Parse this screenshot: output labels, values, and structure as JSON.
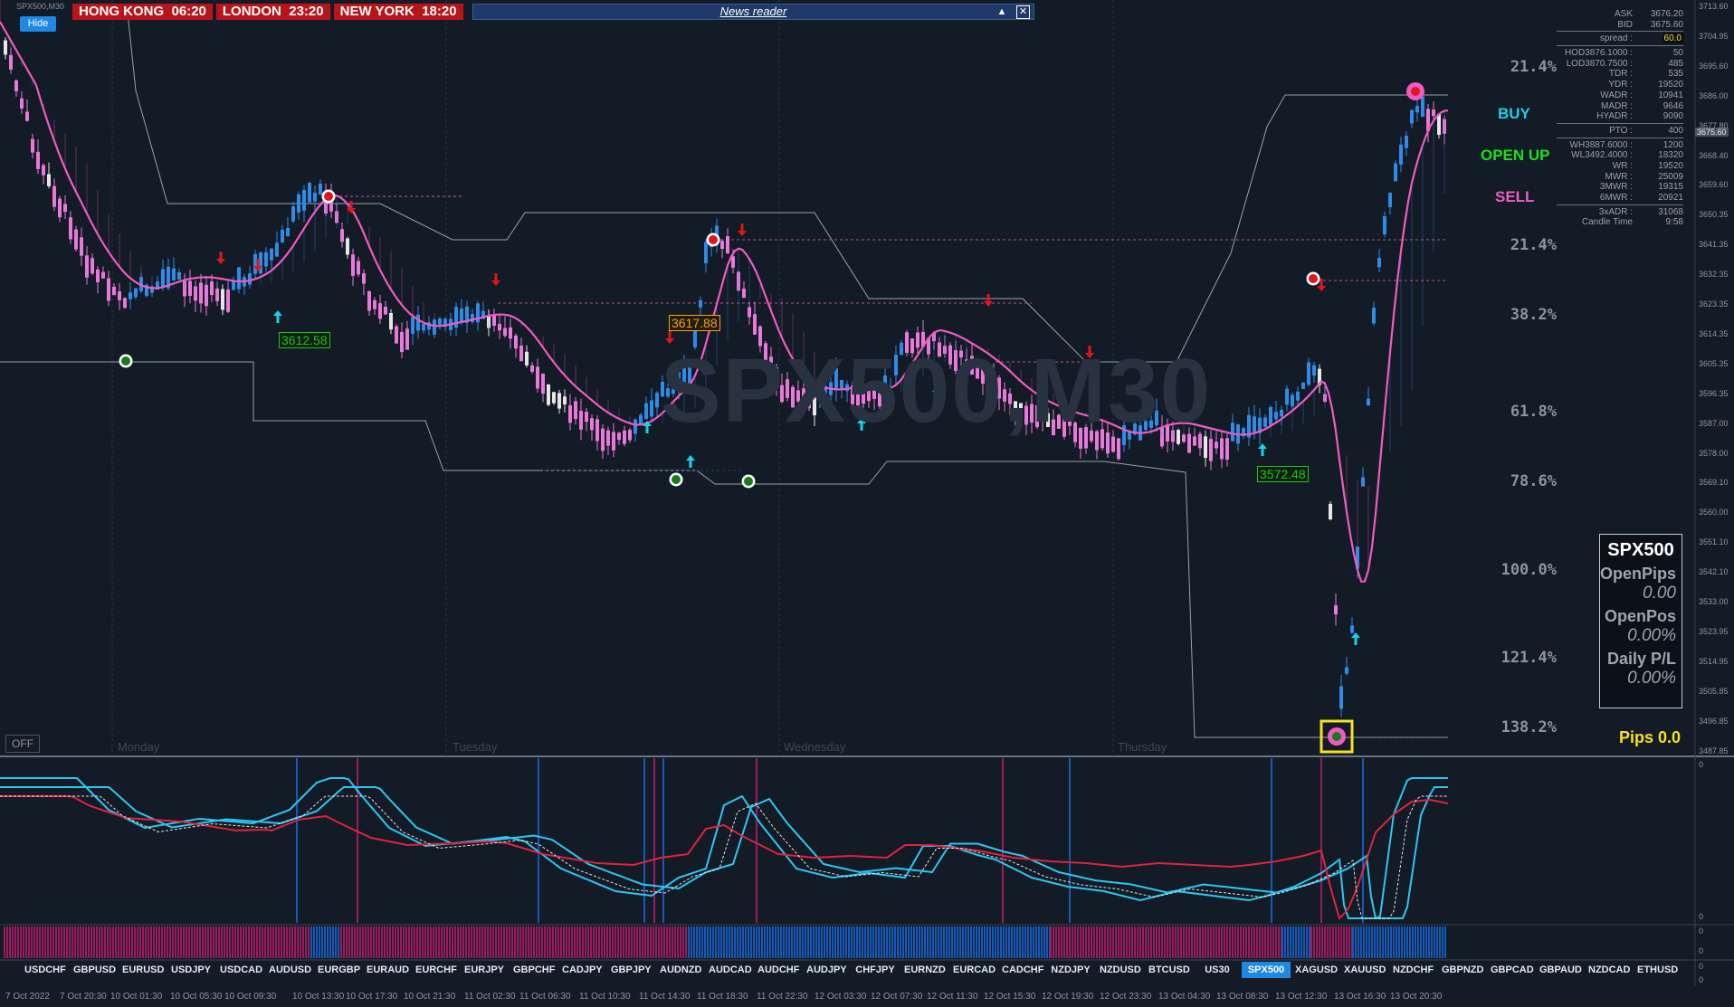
{
  "symbol_title": "SPX500,M30",
  "watermark": "SPX500,M30",
  "clocks": [
    {
      "label": "HONG KONG",
      "time": "06:20"
    },
    {
      "label": "LONDON",
      "time": "23:20"
    },
    {
      "label": "NEW YORK",
      "time": "18:20"
    }
  ],
  "news_reader": {
    "title": "News reader",
    "minimize": "▲",
    "close": "✕"
  },
  "hide_button": "Hide",
  "off_button": "OFF",
  "day_labels": [
    "Monday",
    "Tuesday",
    "Wednesday",
    "Thursday"
  ],
  "fib_levels": [
    "21.4%",
    "21.4%",
    "38.2%",
    "61.8%",
    "78.6%",
    "100.0%",
    "121.4%",
    "138.2%"
  ],
  "signals": {
    "buy": "BUY",
    "open_up": "OPEN UP",
    "sell": "SELL"
  },
  "signal_colors": {
    "buy": "#19d2ea",
    "open_up": "#18e01b",
    "sell": "#f25ac3"
  },
  "info_panel": {
    "ask": {
      "label": "ASK",
      "value": "3676.20"
    },
    "bid": {
      "label": "BID",
      "value": "3675.60"
    },
    "spread": {
      "label": "spread :",
      "value": "60.0"
    },
    "rows1": [
      {
        "label": "HOD3876.1000 :",
        "value": "50"
      },
      {
        "label": "LOD3870.7500 :",
        "value": "485"
      },
      {
        "label": "TDR :",
        "value": "535"
      },
      {
        "label": "YDR :",
        "value": "19520"
      },
      {
        "label": "WADR :",
        "value": "10941"
      },
      {
        "label": "MADR :",
        "value": "9646"
      },
      {
        "label": "HYADR :",
        "value": "9090"
      }
    ],
    "rows2": [
      {
        "label": "PTO :",
        "value": "400"
      }
    ],
    "rows3": [
      {
        "label": "WH3887.6000 :",
        "value": "1200"
      },
      {
        "label": "WL3492.4000 :",
        "value": "18320"
      },
      {
        "label": "WR :",
        "value": "19520"
      },
      {
        "label": "MWR :",
        "value": "25009"
      },
      {
        "label": "3MWR :",
        "value": "19315"
      },
      {
        "label": "6MWR :",
        "value": "20921"
      }
    ],
    "rows4": [
      {
        "label": "3xADR :",
        "value": "31068"
      },
      {
        "label": "Candle Time",
        "value": "9:58"
      }
    ]
  },
  "pnl_box": {
    "symbol": "SPX500",
    "open_pips_label": "OpenPips",
    "open_pips_value": "0.00",
    "open_pos_label": "OpenPos",
    "open_pos_value": "0.00%",
    "daily_label": "Daily P/L",
    "daily_value": "0.00%"
  },
  "pips_total": "Pips 0.0",
  "price_labels": {
    "low1": "3612.58",
    "high1": "3617.88",
    "low2": "3572.48"
  },
  "current_price": "3675.60",
  "price_axis": [
    "3713.60",
    "3704.95",
    "3695.60",
    "3686.00",
    "3677.80",
    "3668.40",
    "3659.60",
    "3650.35",
    "3641.35",
    "3632.35",
    "3623.35",
    "3614.35",
    "3605.35",
    "3596.35",
    "3587.00",
    "3578.00",
    "3569.10",
    "3560.00",
    "3551.10",
    "3542.10",
    "3533.00",
    "3523.95",
    "3514.95",
    "3505.85",
    "3496.85",
    "3487.85"
  ],
  "osc_axis": [
    "0",
    "0"
  ],
  "hist_axis": [
    "0",
    "0"
  ],
  "sym_axis": [
    "0",
    "0"
  ],
  "symbols": [
    "USDCHF",
    "GBPUSD",
    "EURUSD",
    "USDJPY",
    "USDCAD",
    "AUDUSD",
    "EURGBP",
    "EURAUD",
    "EURCHF",
    "EURJPY",
    "GBPCHF",
    "CADJPY",
    "GBPJPY",
    "AUDNZD",
    "AUDCAD",
    "AUDCHF",
    "AUDJPY",
    "CHFJPY",
    "EURNZD",
    "EURCAD",
    "CADCHF",
    "NZDJPY",
    "NZDUSD",
    "BTCUSD",
    "US30",
    "SPX500",
    "XAGUSD",
    "XAUUSD",
    "NZDCHF",
    "GBPNZD",
    "GBPCAD",
    "GBPAUD",
    "NZDCAD",
    "ETHUSD"
  ],
  "active_symbol": "SPX500",
  "time_axis": [
    "7 Oct 2022",
    "7 Oct 20:30",
    "10 Oct 01:30",
    "10 Oct 05:30",
    "10 Oct 09:30",
    "10 Oct 13:30",
    "10 Oct 17:30",
    "10 Oct 21:30",
    "11 Oct 02:30",
    "11 Oct 06:30",
    "11 Oct 10:30",
    "11 Oct 14:30",
    "11 Oct 18:30",
    "11 Oct 22:30",
    "12 Oct 03:30",
    "12 Oct 07:30",
    "12 Oct 11:30",
    "12 Oct 15:30",
    "12 Oct 19:30",
    "12 Oct 23:30",
    "13 Oct 04:30",
    "13 Oct 08:30",
    "13 Oct 12:30",
    "13 Oct 16:30",
    "13 Oct 20:30"
  ],
  "colors": {
    "bull": "#2f8be8",
    "bear": "#e879d8",
    "neutral": "#e6e6e6",
    "ma_fast": "#f05bc0",
    "ma_slow": "#2f8be8",
    "osc_fast": "#2ec6f2",
    "osc_slow": "#e0223f",
    "hist_pink": "#9b1c5e",
    "hist_blue": "#1659b8"
  }
}
